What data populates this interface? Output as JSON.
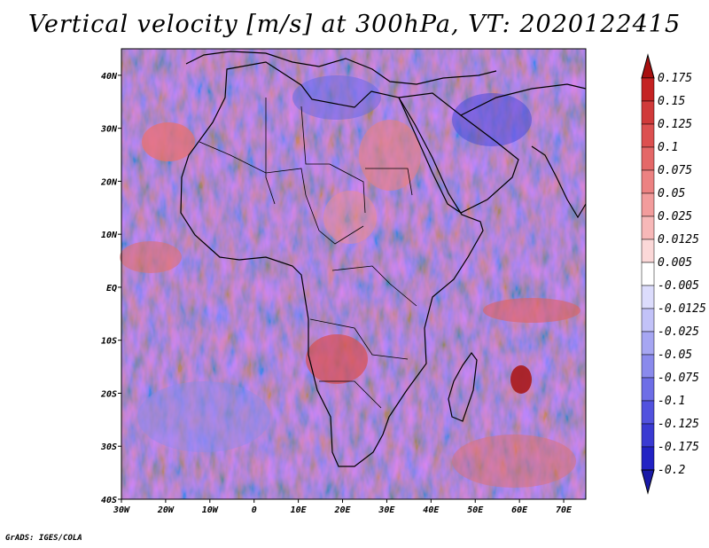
{
  "chart_data": {
    "type": "heatmap",
    "title": "Vertical velocity [m/s] at 300hPa, VT: 2020122415",
    "variable": "Vertical velocity",
    "units": "m/s",
    "level": "300hPa",
    "valid_time": "2020122415",
    "x_ticks": [
      "30W",
      "20W",
      "10W",
      "0",
      "10E",
      "20E",
      "30E",
      "40E",
      "50E",
      "60E",
      "70E"
    ],
    "x_tick_values": [
      -30,
      -20,
      -10,
      0,
      10,
      20,
      30,
      40,
      50,
      60,
      70
    ],
    "y_ticks": [
      "40N",
      "30N",
      "20N",
      "10N",
      "EQ",
      "10S",
      "20S",
      "30S",
      "40S"
    ],
    "y_tick_values": [
      40,
      30,
      20,
      10,
      0,
      -10,
      -20,
      -30,
      -40
    ],
    "xlim": [
      -30,
      75
    ],
    "ylim": [
      -40,
      45
    ],
    "colorbar": {
      "labels": [
        "0.175",
        "0.15",
        "0.125",
        "0.1",
        "0.075",
        "0.05",
        "0.025",
        "0.0125",
        "0.005",
        "-0.005",
        "-0.0125",
        "-0.025",
        "-0.05",
        "-0.075",
        "-0.1",
        "-0.125",
        "-0.175",
        "-0.2"
      ],
      "colors": [
        "#a81010",
        "#c42222",
        "#d03a3a",
        "#dc5050",
        "#e46868",
        "#ec8282",
        "#f29c9c",
        "#f7b8b8",
        "#fbd8d8",
        "#ffffff",
        "#dcdcfc",
        "#c2c2f8",
        "#a6a6f2",
        "#8a8aec",
        "#6e6ee6",
        "#5252de",
        "#3a3ad2",
        "#2222c4",
        "#1a1aa8"
      ]
    }
  },
  "footer_text": "GrADS: IGES/COLA"
}
